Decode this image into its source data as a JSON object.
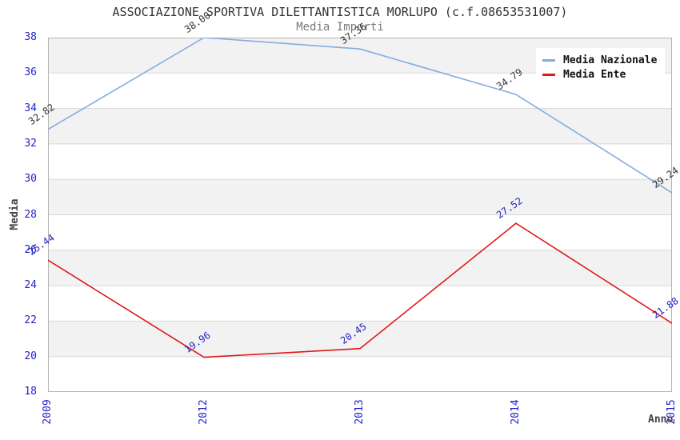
{
  "page": {
    "title": "ASSOCIAZIONE SPORTIVA DILETTANTISTICA MORLUPO (c.f.08653531007)",
    "subtitle": "Media Importi"
  },
  "chart_data": {
    "type": "line",
    "title": "ASSOCIAZIONE SPORTIVA DILETTANTISTICA MORLUPO (c.f.08653531007)",
    "subtitle": "Media Importi",
    "xlabel": "Anno",
    "ylabel": "Media",
    "categories": [
      "2009",
      "2012",
      "2013",
      "2014",
      "2015"
    ],
    "series": [
      {
        "name": "Media Nazionale",
        "values": [
          32.82,
          38.0,
          37.36,
          34.79,
          29.24
        ],
        "color": "#82ade0",
        "label_color": "#333333"
      },
      {
        "name": "Media Ente",
        "values": [
          25.44,
          19.96,
          20.45,
          27.52,
          21.88
        ],
        "color": "#e01818",
        "label_color": "#2525bb"
      }
    ],
    "ylim": [
      18,
      38
    ],
    "yticks": [
      18,
      20,
      22,
      24,
      26,
      28,
      30,
      32,
      34,
      36,
      38
    ],
    "grid": "horizontal",
    "band_fill": "alternating",
    "legend_position": "top-right",
    "colors": {
      "tick_label": "#2222cc",
      "band_gray": "#f2f2f2",
      "gridline": "#d9d9d9",
      "plot_border": "#b5b5b5",
      "title": "#333333",
      "subtitle": "#7a7a7a",
      "axis_title": "#444444"
    }
  }
}
